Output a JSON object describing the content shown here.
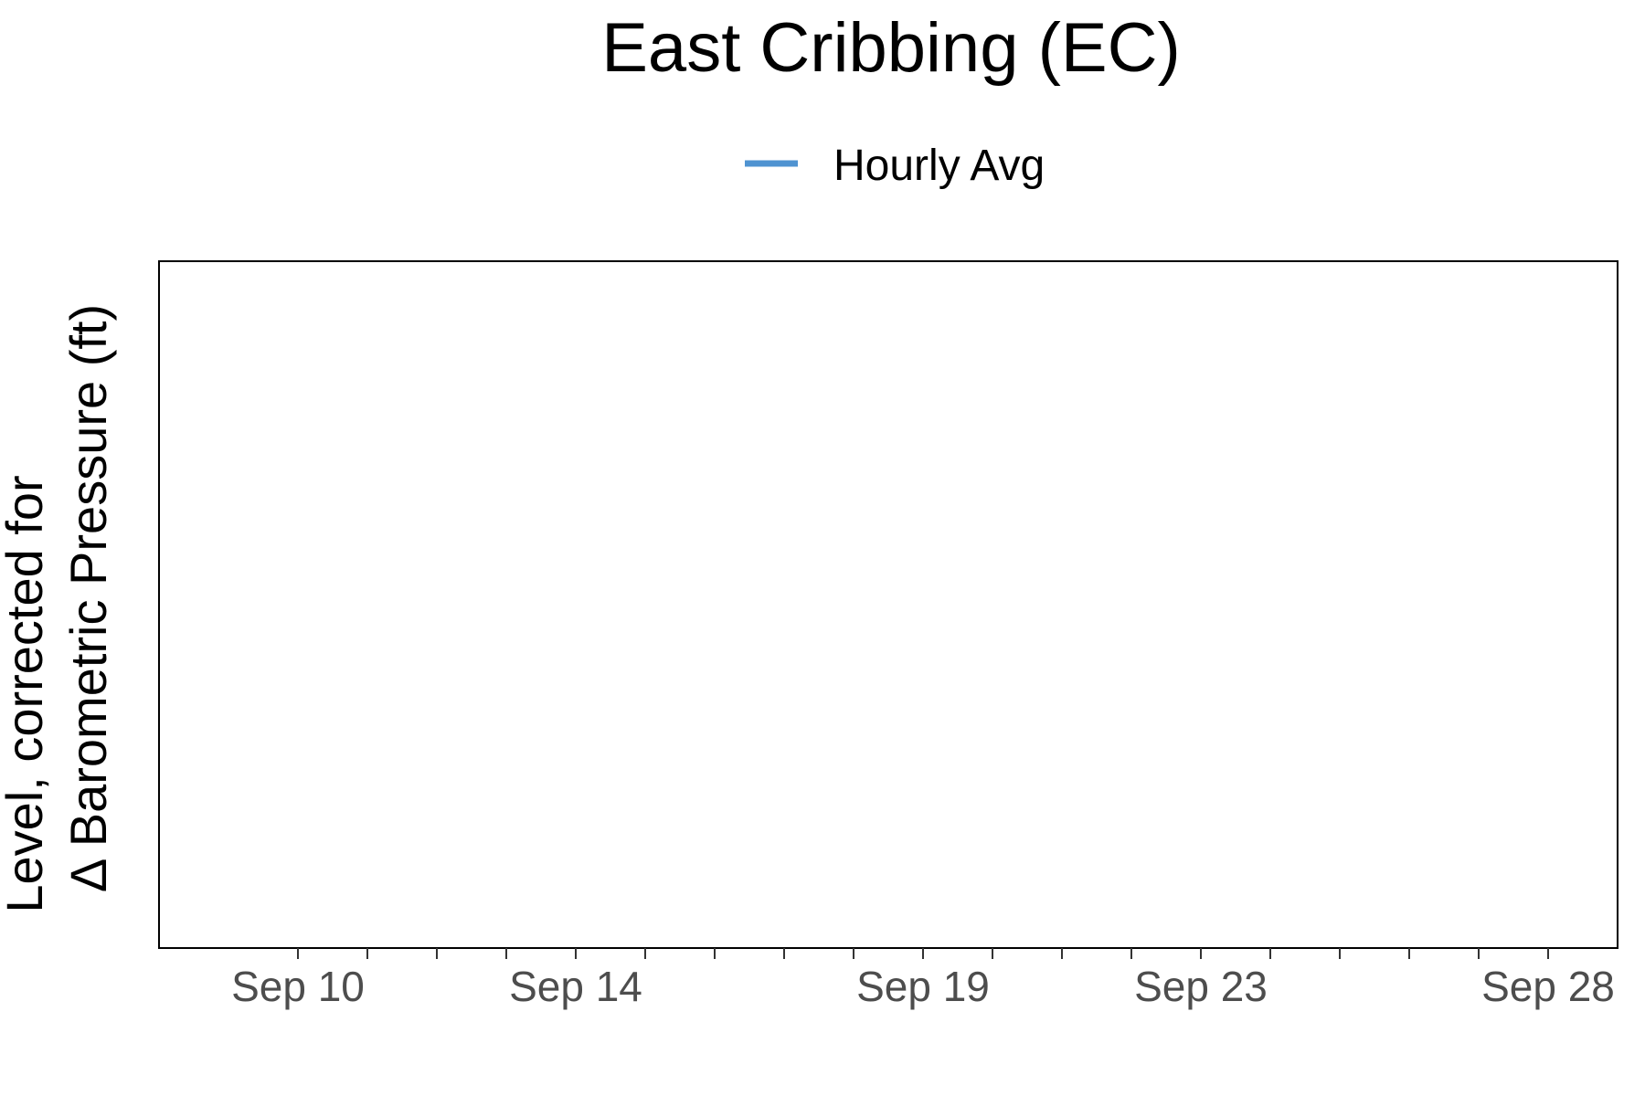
{
  "chart_data": {
    "type": "line",
    "title": "East Cribbing (EC)",
    "ylabel_lines": [
      "Level, corrected for",
      "Δ Barometric Pressure (ft)"
    ],
    "xlabel": "",
    "legend": {
      "placement": "top",
      "entries": [
        {
          "name": "Hourly Avg",
          "color": "#4f93d1"
        }
      ]
    },
    "x_axis": {
      "type": "date",
      "range": [
        "2023-09-08T00:00",
        "2023-09-29T00:00"
      ],
      "major_ticks": [
        {
          "date": "2023-09-10",
          "label": "Sep 10"
        },
        {
          "date": "2023-09-14",
          "label": "Sep 14"
        },
        {
          "date": "2023-09-19",
          "label": "Sep 19"
        },
        {
          "date": "2023-09-23",
          "label": "Sep 23"
        },
        {
          "date": "2023-09-28",
          "label": "Sep 28"
        }
      ],
      "minor_ticks": [
        "2023-09-11",
        "2023-09-12",
        "2023-09-13",
        "2023-09-15",
        "2023-09-16",
        "2023-09-17",
        "2023-09-18",
        "2023-09-20",
        "2023-09-21",
        "2023-09-22",
        "2023-09-24",
        "2023-09-25",
        "2023-09-26",
        "2023-09-27"
      ]
    },
    "y_axis": {
      "ticks": []
    },
    "series": [
      {
        "name": "Hourly Avg",
        "color": "#4f93d1",
        "points": []
      }
    ],
    "grid": false
  }
}
